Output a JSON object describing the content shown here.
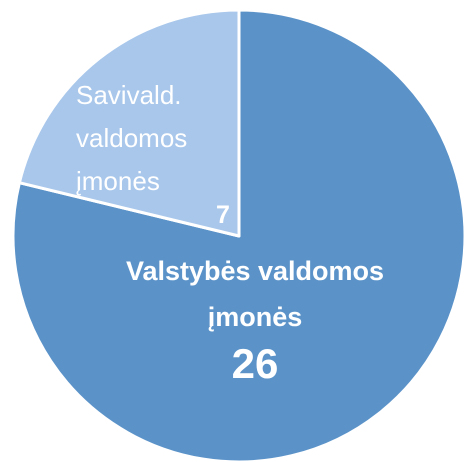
{
  "chart_data": {
    "type": "pie",
    "categories": [
      "Valstybės valdomos įmonės",
      "Savivald. valdomos įmonės"
    ],
    "values": [
      26,
      7
    ],
    "colors": [
      "#5b93c9",
      "#a8c7eb"
    ]
  }
}
